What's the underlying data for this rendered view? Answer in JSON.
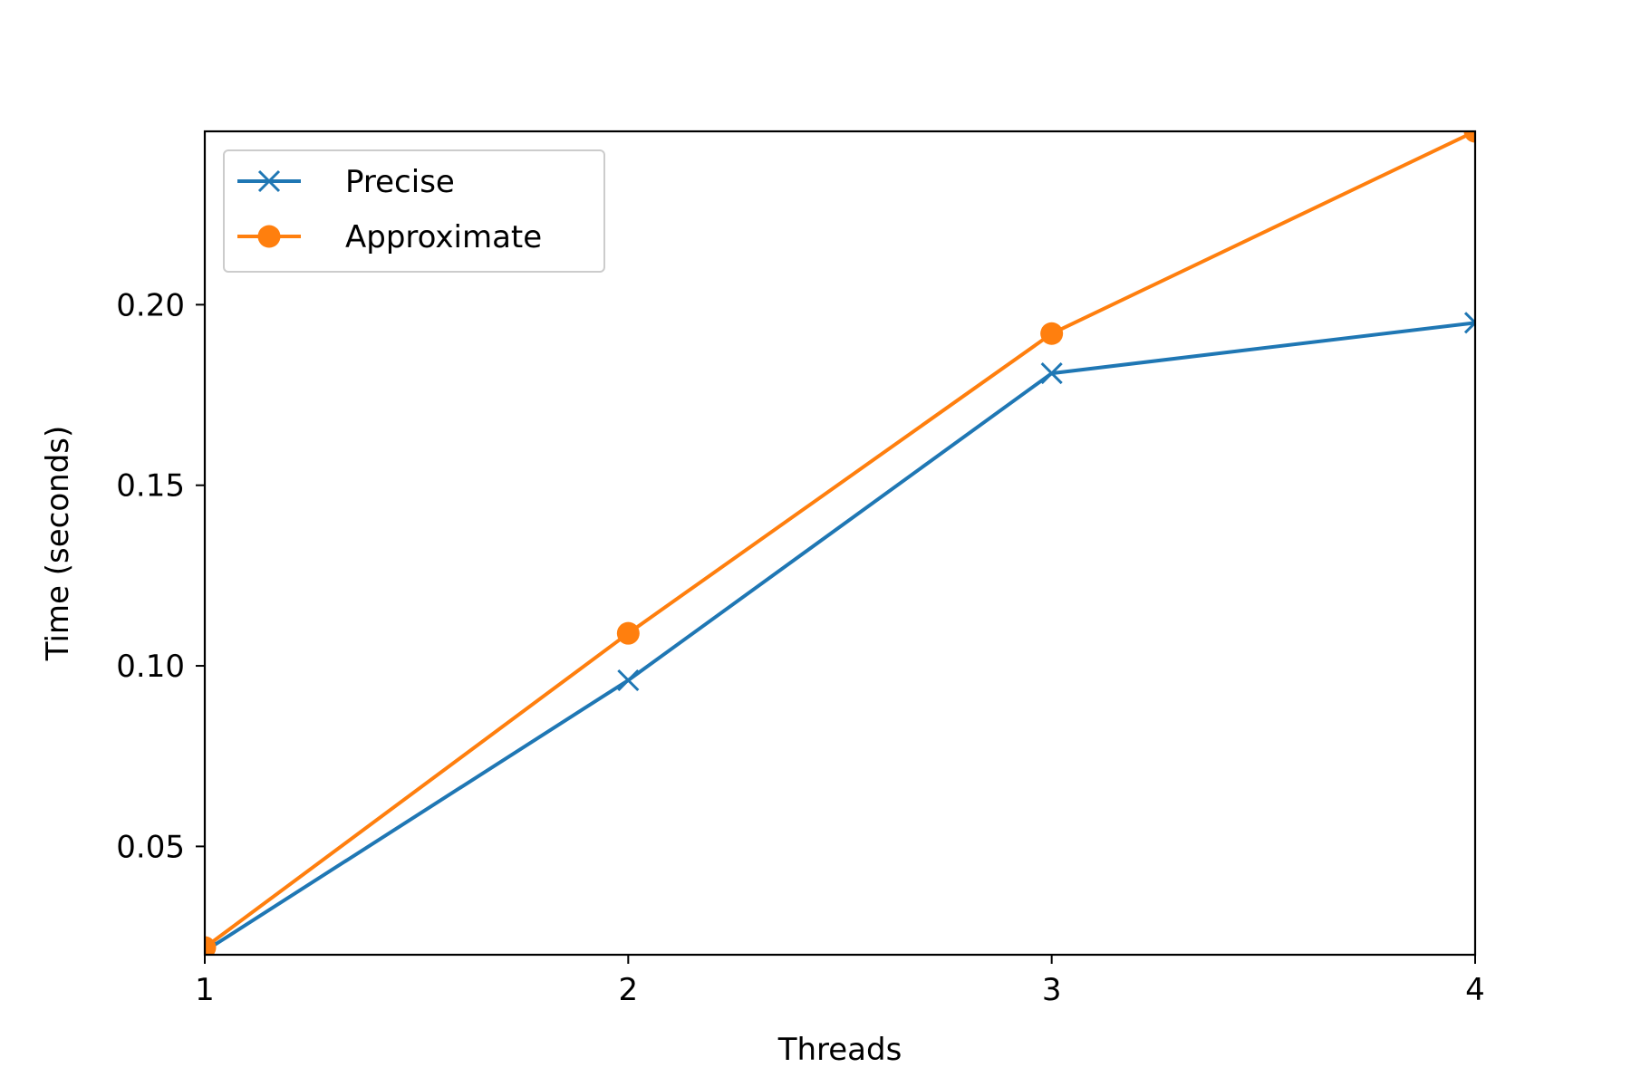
{
  "chart_data": {
    "type": "line",
    "title": "",
    "xlabel": "Threads",
    "ylabel": "Time (seconds)",
    "x": [
      1,
      2,
      3,
      4
    ],
    "xticks": [
      "1",
      "2",
      "3",
      "4"
    ],
    "yticks": [
      "0.05",
      "0.10",
      "0.15",
      "0.20"
    ],
    "xlim": [
      1,
      4
    ],
    "ylim": [
      0.02,
      0.248
    ],
    "grid": false,
    "legend_position": "top-left",
    "series": [
      {
        "name": "Precise",
        "values": [
          0.021,
          0.096,
          0.181,
          0.195
        ],
        "color": "#1f77b4",
        "marker": "x"
      },
      {
        "name": "Approximate",
        "values": [
          0.022,
          0.109,
          0.192,
          0.248
        ],
        "color": "#ff7f0e",
        "marker": "circle"
      }
    ]
  }
}
